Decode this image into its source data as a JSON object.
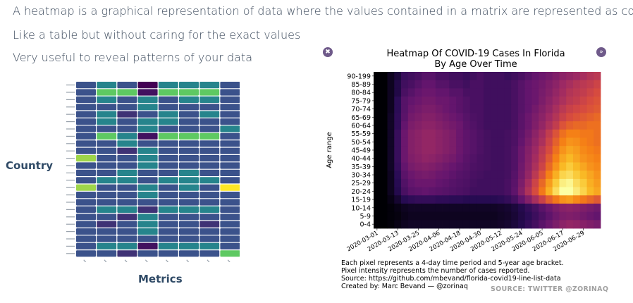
{
  "bullets": [
    "A heatmap is a graphical representation of data where the values contained in a matrix are represented as colors.",
    "Like a table but without caring for the exact values",
    "Very useful to reveal patterns of your data"
  ],
  "left_figure": {
    "row_label": "Country",
    "col_label": "Metrics"
  },
  "right_figure": {
    "nav_prev_icon": "chevron-left-icon",
    "nav_next_icon": "chevron-right-icon",
    "caption": [
      "Each pixel represents a 4-day time period and 5-year age bracket.",
      "Pixel intensity represents the number of cases reported.",
      "Source: https://github.com/mbevand/florida-covid19-line-list-data",
      "Created by: Marc Bevand — @zorinaq"
    ],
    "source_note": "SOURCE: TWITTER @ZORINAQ"
  },
  "chart_data": [
    {
      "type": "heatmap",
      "title": "",
      "xlabel": "",
      "ylabel": "",
      "colormap": "viridis",
      "cell_colors": {
        "low": "#2f4c7a",
        "mid": "#21908d",
        "high": "#5ec962",
        "max": "#fde725",
        "min": "#440154"
      },
      "rows": 24,
      "cols": 8,
      "values": [
        [
          0.25,
          0.45,
          0.25,
          0.0,
          0.45,
          0.45,
          0.45,
          0.25
        ],
        [
          0.25,
          0.75,
          0.75,
          0.05,
          0.75,
          0.75,
          0.75,
          0.25
        ],
        [
          0.25,
          0.45,
          0.25,
          0.45,
          0.25,
          0.45,
          0.45,
          0.25
        ],
        [
          0.25,
          0.25,
          0.25,
          0.45,
          0.25,
          0.25,
          0.25,
          0.25
        ],
        [
          0.25,
          0.45,
          0.15,
          0.25,
          0.45,
          0.25,
          0.45,
          0.25
        ],
        [
          0.25,
          0.45,
          0.25,
          0.45,
          0.45,
          0.25,
          0.25,
          0.25
        ],
        [
          0.25,
          0.25,
          0.25,
          0.45,
          0.25,
          0.25,
          0.25,
          0.45
        ],
        [
          0.25,
          0.75,
          0.45,
          0.05,
          0.75,
          0.75,
          0.75,
          0.25
        ],
        [
          0.25,
          0.25,
          0.45,
          0.25,
          0.25,
          0.25,
          0.25,
          0.25
        ],
        [
          0.25,
          0.25,
          0.15,
          0.45,
          0.25,
          0.25,
          0.25,
          0.25
        ],
        [
          0.85,
          0.25,
          0.25,
          0.45,
          0.25,
          0.25,
          0.25,
          0.25
        ],
        [
          0.25,
          0.25,
          0.25,
          0.45,
          0.25,
          0.25,
          0.25,
          0.25
        ],
        [
          0.25,
          0.25,
          0.45,
          0.25,
          0.25,
          0.45,
          0.25,
          0.25
        ],
        [
          0.25,
          0.45,
          0.45,
          0.25,
          0.45,
          0.45,
          0.45,
          0.25
        ],
        [
          0.85,
          0.25,
          0.25,
          0.45,
          0.25,
          0.45,
          0.25,
          1.0
        ],
        [
          0.25,
          0.25,
          0.25,
          0.45,
          0.25,
          0.25,
          0.25,
          0.25
        ],
        [
          0.25,
          0.25,
          0.25,
          0.25,
          0.25,
          0.25,
          0.25,
          0.25
        ],
        [
          0.25,
          0.45,
          0.45,
          0.15,
          0.45,
          0.45,
          0.45,
          0.25
        ],
        [
          0.25,
          0.25,
          0.15,
          0.45,
          0.25,
          0.25,
          0.25,
          0.25
        ],
        [
          0.25,
          0.15,
          0.25,
          0.45,
          0.25,
          0.25,
          0.15,
          0.25
        ],
        [
          0.25,
          0.25,
          0.25,
          0.45,
          0.25,
          0.25,
          0.25,
          0.25
        ],
        [
          0.25,
          0.25,
          0.25,
          0.25,
          0.25,
          0.25,
          0.25,
          0.25
        ],
        [
          0.25,
          0.45,
          0.45,
          0.05,
          0.45,
          0.45,
          0.45,
          0.25
        ],
        [
          0.25,
          0.25,
          0.15,
          0.25,
          0.25,
          0.25,
          0.25,
          0.75
        ]
      ]
    },
    {
      "type": "heatmap",
      "title": [
        "Heatmap Of COVID-19 Cases In Florida",
        "By Age Over Time"
      ],
      "ylabel": "Age range",
      "xlabel": "",
      "colormap": "inferno",
      "y_categories": [
        "90-199",
        "85-89",
        "80-84",
        "75-79",
        "70-74",
        "65-69",
        "60-64",
        "55-59",
        "50-54",
        "45-49",
        "40-44",
        "35-39",
        "30-34",
        "25-29",
        "20-24",
        "15-19",
        "10-14",
        "5-9",
        "0-4"
      ],
      "x_tick_labels": [
        "2020-03-01",
        "2020-03-13",
        "2020-03-25",
        "2020-04-06",
        "2020-04-18",
        "2020-04-30",
        "2020-05-12",
        "2020-05-24",
        "2020-06-05",
        "2020-06-17",
        "2020-06-29"
      ],
      "x_columns": 33,
      "intensity_rows_note": "each row lists intensity 0-1 for 33 four-day periods from 2020-03-01",
      "values": [
        [
          0,
          0,
          0.05,
          0.1,
          0.18,
          0.2,
          0.22,
          0.25,
          0.25,
          0.22,
          0.22,
          0.2,
          0.2,
          0.18,
          0.2,
          0.22,
          0.2,
          0.2,
          0.2,
          0.18,
          0.2,
          0.22,
          0.25,
          0.28,
          0.3,
          0.32,
          0.35,
          0.38,
          0.4,
          0.42,
          0.45,
          0.48,
          0.5
        ],
        [
          0,
          0,
          0.05,
          0.12,
          0.2,
          0.22,
          0.25,
          0.28,
          0.28,
          0.25,
          0.25,
          0.22,
          0.22,
          0.2,
          0.22,
          0.22,
          0.2,
          0.2,
          0.2,
          0.2,
          0.22,
          0.25,
          0.28,
          0.3,
          0.32,
          0.35,
          0.38,
          0.42,
          0.45,
          0.48,
          0.5,
          0.52,
          0.55
        ],
        [
          0,
          0,
          0.05,
          0.12,
          0.22,
          0.25,
          0.28,
          0.3,
          0.3,
          0.28,
          0.28,
          0.25,
          0.25,
          0.22,
          0.22,
          0.22,
          0.2,
          0.2,
          0.2,
          0.2,
          0.22,
          0.25,
          0.28,
          0.3,
          0.33,
          0.36,
          0.4,
          0.44,
          0.48,
          0.5,
          0.52,
          0.55,
          0.58
        ],
        [
          0,
          0,
          0.05,
          0.15,
          0.25,
          0.28,
          0.3,
          0.32,
          0.32,
          0.3,
          0.3,
          0.28,
          0.26,
          0.24,
          0.22,
          0.22,
          0.2,
          0.2,
          0.2,
          0.2,
          0.22,
          0.25,
          0.28,
          0.3,
          0.34,
          0.38,
          0.42,
          0.46,
          0.5,
          0.52,
          0.55,
          0.58,
          0.6
        ],
        [
          0,
          0,
          0.05,
          0.15,
          0.25,
          0.3,
          0.32,
          0.34,
          0.34,
          0.32,
          0.3,
          0.28,
          0.26,
          0.24,
          0.22,
          0.22,
          0.2,
          0.2,
          0.2,
          0.2,
          0.22,
          0.25,
          0.28,
          0.32,
          0.36,
          0.4,
          0.45,
          0.5,
          0.54,
          0.56,
          0.58,
          0.6,
          0.62
        ],
        [
          0,
          0,
          0.06,
          0.16,
          0.26,
          0.32,
          0.34,
          0.36,
          0.36,
          0.34,
          0.32,
          0.3,
          0.28,
          0.25,
          0.23,
          0.22,
          0.2,
          0.2,
          0.2,
          0.2,
          0.22,
          0.26,
          0.3,
          0.34,
          0.38,
          0.43,
          0.48,
          0.54,
          0.58,
          0.6,
          0.62,
          0.64,
          0.66
        ],
        [
          0,
          0,
          0.06,
          0.16,
          0.28,
          0.34,
          0.36,
          0.38,
          0.38,
          0.36,
          0.34,
          0.32,
          0.3,
          0.26,
          0.24,
          0.22,
          0.2,
          0.2,
          0.2,
          0.2,
          0.22,
          0.26,
          0.3,
          0.35,
          0.4,
          0.46,
          0.52,
          0.6,
          0.64,
          0.66,
          0.66,
          0.68,
          0.68
        ],
        [
          0,
          0,
          0.06,
          0.18,
          0.3,
          0.36,
          0.38,
          0.4,
          0.4,
          0.38,
          0.36,
          0.34,
          0.3,
          0.27,
          0.25,
          0.23,
          0.21,
          0.2,
          0.2,
          0.21,
          0.23,
          0.27,
          0.32,
          0.38,
          0.44,
          0.52,
          0.6,
          0.68,
          0.72,
          0.72,
          0.7,
          0.7,
          0.68
        ],
        [
          0,
          0,
          0.06,
          0.18,
          0.3,
          0.36,
          0.38,
          0.4,
          0.4,
          0.38,
          0.36,
          0.34,
          0.3,
          0.27,
          0.25,
          0.23,
          0.21,
          0.2,
          0.2,
          0.21,
          0.23,
          0.28,
          0.34,
          0.4,
          0.46,
          0.55,
          0.64,
          0.72,
          0.76,
          0.75,
          0.72,
          0.7,
          0.68
        ],
        [
          0,
          0,
          0.06,
          0.18,
          0.3,
          0.36,
          0.38,
          0.4,
          0.4,
          0.38,
          0.36,
          0.34,
          0.3,
          0.27,
          0.25,
          0.23,
          0.21,
          0.2,
          0.2,
          0.21,
          0.24,
          0.3,
          0.36,
          0.42,
          0.5,
          0.58,
          0.68,
          0.76,
          0.8,
          0.78,
          0.74,
          0.72,
          0.7
        ],
        [
          0,
          0,
          0.06,
          0.18,
          0.3,
          0.35,
          0.37,
          0.39,
          0.38,
          0.36,
          0.34,
          0.32,
          0.29,
          0.26,
          0.24,
          0.22,
          0.21,
          0.2,
          0.2,
          0.21,
          0.24,
          0.3,
          0.37,
          0.44,
          0.52,
          0.62,
          0.72,
          0.8,
          0.84,
          0.8,
          0.76,
          0.74,
          0.72
        ],
        [
          0,
          0,
          0.06,
          0.17,
          0.28,
          0.33,
          0.35,
          0.36,
          0.35,
          0.33,
          0.31,
          0.29,
          0.27,
          0.25,
          0.23,
          0.22,
          0.21,
          0.2,
          0.2,
          0.21,
          0.24,
          0.31,
          0.38,
          0.46,
          0.55,
          0.66,
          0.76,
          0.84,
          0.88,
          0.84,
          0.8,
          0.76,
          0.74
        ],
        [
          0,
          0,
          0.05,
          0.15,
          0.26,
          0.3,
          0.32,
          0.33,
          0.32,
          0.3,
          0.29,
          0.27,
          0.25,
          0.24,
          0.22,
          0.21,
          0.2,
          0.2,
          0.2,
          0.21,
          0.25,
          0.32,
          0.4,
          0.5,
          0.6,
          0.72,
          0.82,
          0.9,
          0.92,
          0.88,
          0.84,
          0.8,
          0.76
        ],
        [
          0,
          0,
          0.05,
          0.14,
          0.24,
          0.28,
          0.3,
          0.3,
          0.3,
          0.28,
          0.27,
          0.25,
          0.24,
          0.23,
          0.21,
          0.2,
          0.2,
          0.2,
          0.2,
          0.22,
          0.26,
          0.34,
          0.44,
          0.55,
          0.66,
          0.78,
          0.88,
          0.96,
          0.98,
          0.92,
          0.88,
          0.82,
          0.78
        ],
        [
          0,
          0,
          0.05,
          0.13,
          0.22,
          0.26,
          0.27,
          0.28,
          0.27,
          0.26,
          0.25,
          0.24,
          0.23,
          0.22,
          0.2,
          0.2,
          0.2,
          0.2,
          0.2,
          0.22,
          0.27,
          0.36,
          0.47,
          0.58,
          0.7,
          0.82,
          0.92,
          1.0,
          1.0,
          0.95,
          0.9,
          0.84,
          0.8
        ],
        [
          0,
          0,
          0.03,
          0.08,
          0.14,
          0.16,
          0.17,
          0.17,
          0.17,
          0.16,
          0.16,
          0.15,
          0.15,
          0.14,
          0.14,
          0.14,
          0.14,
          0.14,
          0.15,
          0.17,
          0.21,
          0.28,
          0.36,
          0.45,
          0.54,
          0.63,
          0.7,
          0.76,
          0.78,
          0.74,
          0.7,
          0.66,
          0.62
        ],
        [
          0,
          0,
          0.01,
          0.03,
          0.05,
          0.06,
          0.06,
          0.06,
          0.06,
          0.06,
          0.06,
          0.06,
          0.06,
          0.06,
          0.06,
          0.06,
          0.06,
          0.06,
          0.07,
          0.08,
          0.1,
          0.13,
          0.17,
          0.21,
          0.26,
          0.3,
          0.34,
          0.37,
          0.38,
          0.37,
          0.35,
          0.33,
          0.31
        ],
        [
          0,
          0,
          0.01,
          0.02,
          0.04,
          0.05,
          0.05,
          0.05,
          0.05,
          0.05,
          0.05,
          0.05,
          0.05,
          0.05,
          0.05,
          0.05,
          0.05,
          0.05,
          0.06,
          0.07,
          0.09,
          0.12,
          0.15,
          0.19,
          0.23,
          0.27,
          0.31,
          0.34,
          0.35,
          0.34,
          0.32,
          0.3,
          0.28
        ],
        [
          0,
          0,
          0.01,
          0.03,
          0.05,
          0.06,
          0.06,
          0.06,
          0.06,
          0.06,
          0.06,
          0.06,
          0.06,
          0.06,
          0.06,
          0.06,
          0.06,
          0.06,
          0.07,
          0.08,
          0.1,
          0.13,
          0.17,
          0.21,
          0.26,
          0.3,
          0.34,
          0.38,
          0.4,
          0.39,
          0.37,
          0.35,
          0.33
        ]
      ]
    }
  ]
}
